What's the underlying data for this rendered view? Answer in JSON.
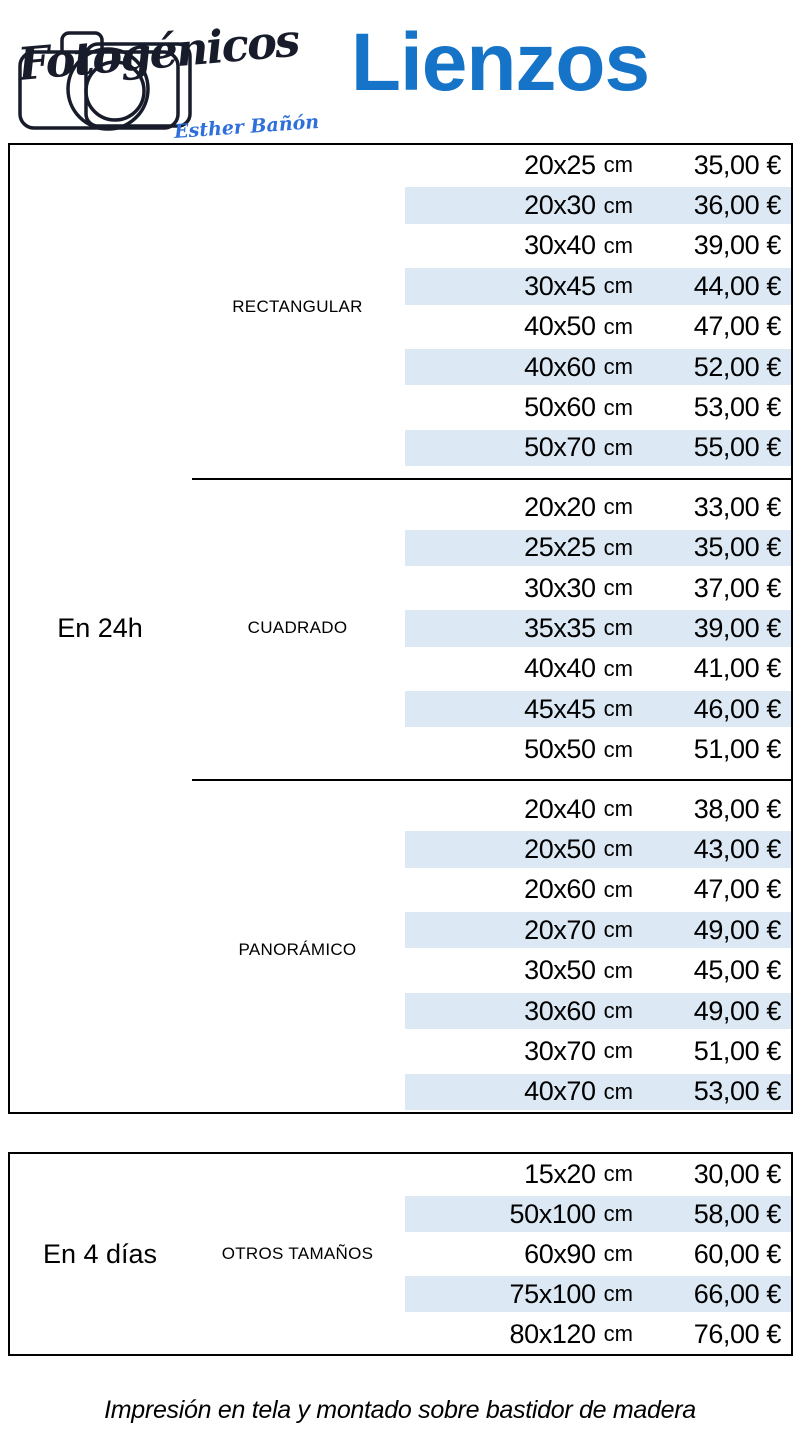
{
  "header": {
    "brand": "Fotogénicos",
    "owner_signature": "Esther Bañón",
    "title": "Lienzos"
  },
  "icons": {
    "logo": "camera-sketch-icon"
  },
  "tables": [
    {
      "delivery": "En 24h",
      "sections": [
        {
          "category": "RECTANGULAR",
          "rows": [
            {
              "size": "20x25",
              "unit": "cm",
              "price": "35,00 €"
            },
            {
              "size": "20x30",
              "unit": "cm",
              "price": "36,00 €"
            },
            {
              "size": "30x40",
              "unit": "cm",
              "price": "39,00 €"
            },
            {
              "size": "30x45",
              "unit": "cm",
              "price": "44,00 €"
            },
            {
              "size": "40x50",
              "unit": "cm",
              "price": "47,00 €"
            },
            {
              "size": "40x60",
              "unit": "cm",
              "price": "52,00 €"
            },
            {
              "size": "50x60",
              "unit": "cm",
              "price": "53,00 €"
            },
            {
              "size": "50x70",
              "unit": "cm",
              "price": "55,00 €"
            }
          ]
        },
        {
          "category": "CUADRADO",
          "rows": [
            {
              "size": "20x20",
              "unit": "cm",
              "price": "33,00 €"
            },
            {
              "size": "25x25",
              "unit": "cm",
              "price": "35,00 €"
            },
            {
              "size": "30x30",
              "unit": "cm",
              "price": "37,00 €"
            },
            {
              "size": "35x35",
              "unit": "cm",
              "price": "39,00 €"
            },
            {
              "size": "40x40",
              "unit": "cm",
              "price": "41,00 €"
            },
            {
              "size": "45x45",
              "unit": "cm",
              "price": "46,00 €"
            },
            {
              "size": "50x50",
              "unit": "cm",
              "price": "51,00 €"
            }
          ]
        },
        {
          "category": "PANORÁMICO",
          "rows": [
            {
              "size": "20x40",
              "unit": "cm",
              "price": "38,00 €"
            },
            {
              "size": "20x50",
              "unit": "cm",
              "price": "43,00 €"
            },
            {
              "size": "20x60",
              "unit": "cm",
              "price": "47,00 €"
            },
            {
              "size": "20x70",
              "unit": "cm",
              "price": "49,00 €"
            },
            {
              "size": "30x50",
              "unit": "cm",
              "price": "45,00 €"
            },
            {
              "size": "30x60",
              "unit": "cm",
              "price": "49,00 €"
            },
            {
              "size": "30x70",
              "unit": "cm",
              "price": "51,00 €"
            },
            {
              "size": "40x70",
              "unit": "cm",
              "price": "53,00 €"
            }
          ]
        }
      ]
    },
    {
      "delivery": "En 4 días",
      "sections": [
        {
          "category": "OTROS TAMAÑOS",
          "rows": [
            {
              "size": "15x20",
              "unit": "cm",
              "price": "30,00 €"
            },
            {
              "size": "50x100",
              "unit": "cm",
              "price": "58,00 €"
            },
            {
              "size": "60x90",
              "unit": "cm",
              "price": "60,00 €"
            },
            {
              "size": "75x100",
              "unit": "cm",
              "price": "66,00 €"
            },
            {
              "size": "80x120",
              "unit": "cm",
              "price": "76,00 €"
            }
          ]
        }
      ]
    }
  ],
  "footer": {
    "note": "Impresión en tela y montado sobre bastidor de madera"
  },
  "colors": {
    "title_blue": "#1573c8",
    "row_band_blue": "#dce9f5",
    "logo_ink": "#181c2a",
    "signature_blue": "#2f6fdb",
    "border_black": "#000000"
  }
}
